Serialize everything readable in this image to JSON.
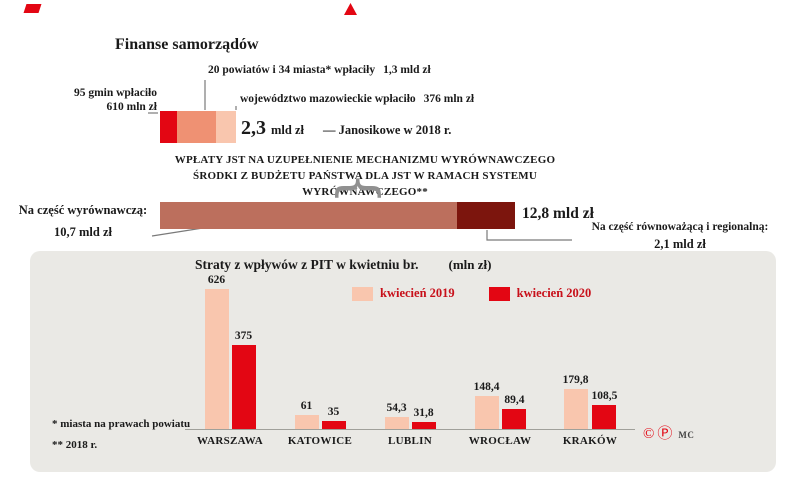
{
  "page": {
    "title": "Finanse samorządów"
  },
  "janosikowe": {
    "segments": [
      {
        "label": "95 gmin wpłaciło",
        "value": "610 mln zł",
        "color": "#e30613"
      },
      {
        "label": "20 powiatów i 34 miasta* wpłaciły",
        "value": "1,3 mld zł",
        "color": "#ef9173"
      },
      {
        "label": "województwo mazowieckie wpłaciło",
        "value": "376 mln zł",
        "color": "#f9c6ae"
      }
    ],
    "total": "2,3",
    "total_unit": "mld zł",
    "caption": "— Janosikowe w 2018 r."
  },
  "wyrownawczy": {
    "heading1": "WPŁATY JST NA UZUPEŁNIENIE MECHANIZMU WYRÓWNAWCZEGO",
    "heading2": "ŚRODKI Z BUDŻETU PAŃSTWA DLA JST W RAMACH SYSTEMU WYRÓWNAWCZEGO**",
    "bar": {
      "main_color": "#bc6f5d",
      "dark_color": "#7c150d"
    },
    "total": "12,8 mld zł",
    "left": {
      "label": "Na część wyrównawczą:",
      "value": "10,7 mld zł"
    },
    "right": {
      "label": "Na część równoważącą i regionalną:",
      "value": "2,1 mld zł"
    }
  },
  "chart_data": {
    "type": "bar",
    "title": "Straty z wpływów z PIT w kwietniu br.",
    "unit": "(mln zł)",
    "categories": [
      "WARSZAWA",
      "KATOWICE",
      "LUBLIN",
      "WROCŁAW",
      "KRAKÓW"
    ],
    "series": [
      {
        "name": "kwiecień 2019",
        "color": "#f9c6ae",
        "values": [
          626,
          61,
          54.3,
          148.4,
          179.8
        ],
        "labels": [
          "626",
          "61",
          "54,3",
          "148,4",
          "179,8"
        ]
      },
      {
        "name": "kwiecień 2020",
        "color": "#e30613",
        "values": [
          375,
          35,
          31.8,
          89.4,
          108.5
        ],
        "labels": [
          "375",
          "35",
          "31,8",
          "89,4",
          "108,5"
        ]
      }
    ],
    "ylim": [
      0,
      650
    ],
    "grid": false,
    "legend_position": "top"
  },
  "footnotes": {
    "line1": "* miasta na prawach powiatu",
    "line2": "** 2018 r."
  },
  "credits": {
    "copyright": "©",
    "p": "Ⓟ",
    "mc": "MC"
  }
}
